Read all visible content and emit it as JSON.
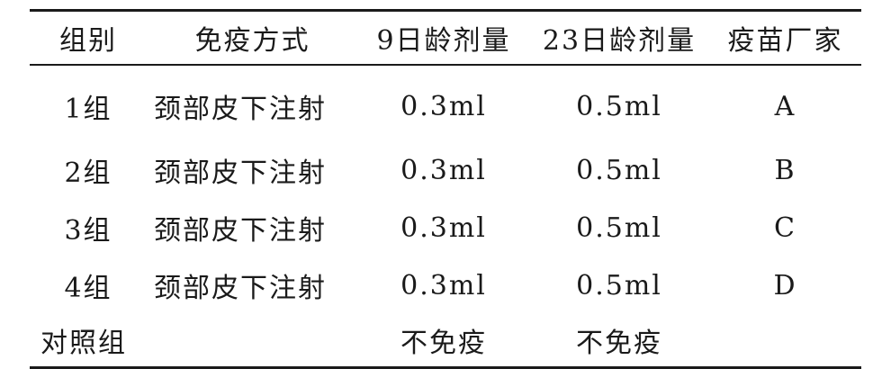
{
  "table": {
    "headers": [
      "组别",
      "免疫方式",
      "9日龄剂量",
      "23日龄剂量",
      "疫苗厂家"
    ],
    "rows": [
      [
        "1组",
        "颈部皮下注射",
        "0.3ml",
        "0.5ml",
        "A"
      ],
      [
        "2组",
        "颈部皮下注射",
        "0.3ml",
        "0.5ml",
        "B"
      ],
      [
        "3组",
        "颈部皮下注射",
        "0.3ml",
        "0.5ml",
        "C"
      ],
      [
        "4组",
        "颈部皮下注射",
        "0.3ml",
        "0.5ml",
        "D"
      ],
      [
        "对照组",
        "",
        "不免疫",
        "不免疫",
        ""
      ]
    ]
  }
}
